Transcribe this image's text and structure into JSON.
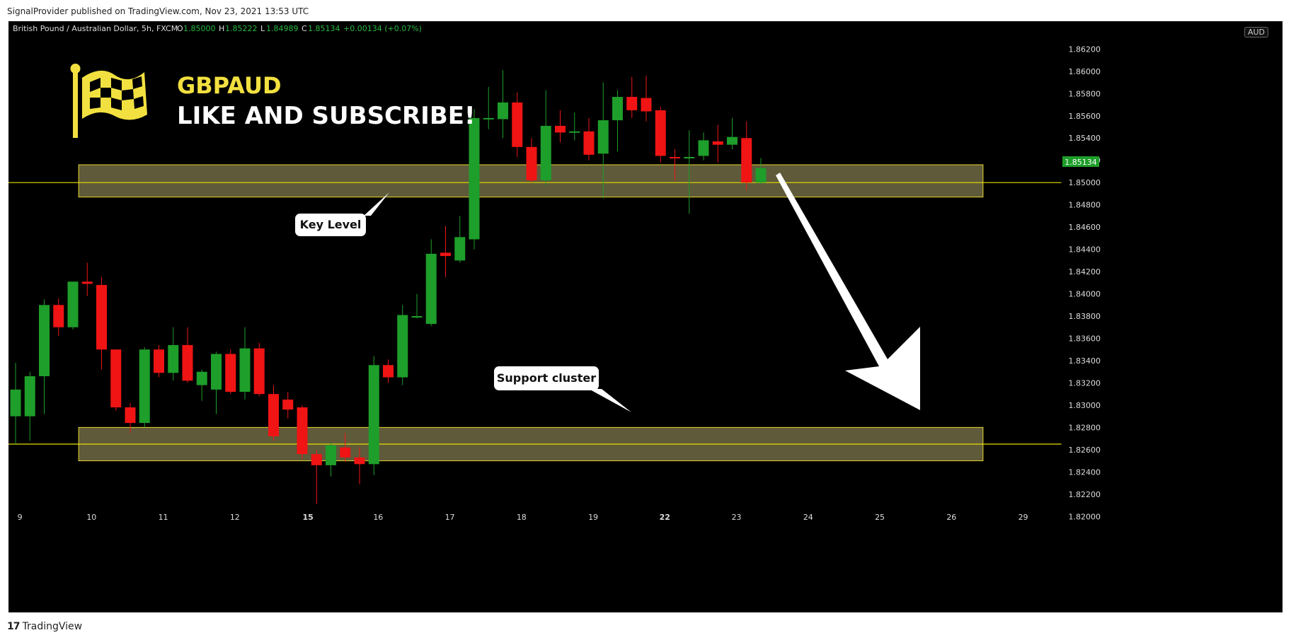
{
  "header": {
    "text": "SignalProvider published on TradingView.com, Nov 23, 2021 13:53 UTC"
  },
  "legend": {
    "symbol": "British Pound / Australian Dollar, 5h, FXCM",
    "o_label": "O",
    "o": "1.85000",
    "h_label": "H",
    "h": "1.85222",
    "l_label": "L",
    "l": "1.84989",
    "c_label": "C",
    "c": "1.85134",
    "change": "+0.00134 (+0.07%)"
  },
  "overlay": {
    "title": "GBPAUD",
    "subtitle": "LIKE AND SUBSCRIBE!",
    "logo_icon": "checkered-flag-icon"
  },
  "annotations": {
    "key_level": "Key Level",
    "support_cluster": "Support cluster"
  },
  "axis": {
    "currency": "AUD",
    "last_price": "1.85134"
  },
  "footer": {
    "brand": "TradingView",
    "brand_icon": "tradingview-logo-icon"
  },
  "colors": {
    "up": "#1e9e2a",
    "down": "#f01414",
    "zone_fill": "#5e5a3a",
    "zone_border": "#e6d52a",
    "level_line": "#e8e000",
    "title": "#f2e040"
  },
  "chart_data": {
    "type": "candlestick",
    "y_ticks": [
      "1.82000",
      "1.82200",
      "1.82400",
      "1.82600",
      "1.82800",
      "1.83000",
      "1.83200",
      "1.83400",
      "1.83600",
      "1.83800",
      "1.84000",
      "1.84200",
      "1.84400",
      "1.84600",
      "1.84800",
      "1.85000",
      "1.85200",
      "1.85400",
      "1.85600",
      "1.85800",
      "1.86000",
      "1.86200"
    ],
    "ylim": [
      1.819,
      1.8645
    ],
    "x_ticks": [
      {
        "label": "9",
        "idx": 0.3,
        "bold": false
      },
      {
        "label": "10",
        "idx": 5.3,
        "bold": false
      },
      {
        "label": "11",
        "idx": 10.3,
        "bold": false
      },
      {
        "label": "12",
        "idx": 15.3,
        "bold": false
      },
      {
        "label": "15",
        "idx": 20.4,
        "bold": true
      },
      {
        "label": "16",
        "idx": 25.3,
        "bold": false
      },
      {
        "label": "17",
        "idx": 30.3,
        "bold": false
      },
      {
        "label": "18",
        "idx": 35.3,
        "bold": false
      },
      {
        "label": "19",
        "idx": 40.3,
        "bold": false
      },
      {
        "label": "22",
        "idx": 45.3,
        "bold": true
      },
      {
        "label": "23",
        "idx": 50.3,
        "bold": false
      },
      {
        "label": "24",
        "idx": 55.3,
        "bold": false
      },
      {
        "label": "25",
        "idx": 60.3,
        "bold": false
      },
      {
        "label": "26",
        "idx": 65.3,
        "bold": false
      },
      {
        "label": "29",
        "idx": 70.3,
        "bold": false
      }
    ],
    "candles": [
      {
        "o": 1.829,
        "h": 1.8338,
        "l": 1.8265,
        "c": 1.8314
      },
      {
        "o": 1.829,
        "h": 1.833,
        "l": 1.8268,
        "c": 1.8326
      },
      {
        "o": 1.8326,
        "h": 1.8395,
        "l": 1.8292,
        "c": 1.839
      },
      {
        "o": 1.839,
        "h": 1.8396,
        "l": 1.8362,
        "c": 1.837
      },
      {
        "o": 1.837,
        "h": 1.8411,
        "l": 1.8368,
        "c": 1.8411
      },
      {
        "o": 1.8411,
        "h": 1.8428,
        "l": 1.8398,
        "c": 1.8409
      },
      {
        "o": 1.8408,
        "h": 1.8415,
        "l": 1.8332,
        "c": 1.835
      },
      {
        "o": 1.835,
        "h": 1.835,
        "l": 1.8295,
        "c": 1.8298
      },
      {
        "o": 1.8298,
        "h": 1.8302,
        "l": 1.8275,
        "c": 1.8284
      },
      {
        "o": 1.8284,
        "h": 1.8352,
        "l": 1.828,
        "c": 1.835
      },
      {
        "o": 1.835,
        "h": 1.8354,
        "l": 1.8325,
        "c": 1.8329
      },
      {
        "o": 1.8329,
        "h": 1.837,
        "l": 1.8322,
        "c": 1.8354
      },
      {
        "o": 1.8354,
        "h": 1.837,
        "l": 1.832,
        "c": 1.8322
      },
      {
        "o": 1.8318,
        "h": 1.8332,
        "l": 1.8304,
        "c": 1.833
      },
      {
        "o": 1.8314,
        "h": 1.8348,
        "l": 1.8292,
        "c": 1.8346
      },
      {
        "o": 1.8346,
        "h": 1.835,
        "l": 1.831,
        "c": 1.8312
      },
      {
        "o": 1.8312,
        "h": 1.837,
        "l": 1.8305,
        "c": 1.8351
      },
      {
        "o": 1.8351,
        "h": 1.8356,
        "l": 1.8308,
        "c": 1.831
      },
      {
        "o": 1.831,
        "h": 1.8318,
        "l": 1.8268,
        "c": 1.8272
      },
      {
        "o": 1.8305,
        "h": 1.8312,
        "l": 1.8288,
        "c": 1.8296
      },
      {
        "o": 1.8298,
        "h": 1.83,
        "l": 1.8252,
        "c": 1.8256
      },
      {
        "o": 1.8256,
        "h": 1.826,
        "l": 1.8211,
        "c": 1.8246
      },
      {
        "o": 1.8246,
        "h": 1.8266,
        "l": 1.8236,
        "c": 1.8264
      },
      {
        "o": 1.8262,
        "h": 1.8275,
        "l": 1.8249,
        "c": 1.8253
      },
      {
        "o": 1.8253,
        "h": 1.8262,
        "l": 1.8229,
        "c": 1.8247
      },
      {
        "o": 1.8247,
        "h": 1.8344,
        "l": 1.8237,
        "c": 1.8336
      },
      {
        "o": 1.8336,
        "h": 1.8341,
        "l": 1.832,
        "c": 1.8325
      },
      {
        "o": 1.8325,
        "h": 1.839,
        "l": 1.8318,
        "c": 1.8381
      },
      {
        "o": 1.838,
        "h": 1.84,
        "l": 1.8378,
        "c": 1.838
      },
      {
        "o": 1.8373,
        "h": 1.8449,
        "l": 1.8371,
        "c": 1.8436
      },
      {
        "o": 1.8437,
        "h": 1.8461,
        "l": 1.8415,
        "c": 1.8434
      },
      {
        "o": 1.843,
        "h": 1.847,
        "l": 1.8428,
        "c": 1.8451
      },
      {
        "o": 1.8449,
        "h": 1.8566,
        "l": 1.844,
        "c": 1.8558
      },
      {
        "o": 1.8558,
        "h": 1.8586,
        "l": 1.8548,
        "c": 1.8558
      },
      {
        "o": 1.8557,
        "h": 1.8601,
        "l": 1.854,
        "c": 1.8572
      },
      {
        "o": 1.8572,
        "h": 1.8581,
        "l": 1.8523,
        "c": 1.8532
      },
      {
        "o": 1.8532,
        "h": 1.854,
        "l": 1.85,
        "c": 1.8502
      },
      {
        "o": 1.8502,
        "h": 1.8583,
        "l": 1.8498,
        "c": 1.8551
      },
      {
        "o": 1.8551,
        "h": 1.8565,
        "l": 1.8536,
        "c": 1.8545
      },
      {
        "o": 1.8546,
        "h": 1.8563,
        "l": 1.8538,
        "c": 1.8546
      },
      {
        "o": 1.8546,
        "h": 1.8558,
        "l": 1.852,
        "c": 1.8525
      },
      {
        "o": 1.8526,
        "h": 1.859,
        "l": 1.8486,
        "c": 1.8556
      },
      {
        "o": 1.8556,
        "h": 1.8583,
        "l": 1.8528,
        "c": 1.8577
      },
      {
        "o": 1.8577,
        "h": 1.8595,
        "l": 1.8558,
        "c": 1.8565
      },
      {
        "o": 1.8576,
        "h": 1.8596,
        "l": 1.8555,
        "c": 1.8564
      },
      {
        "o": 1.8565,
        "h": 1.8568,
        "l": 1.8518,
        "c": 1.8524
      },
      {
        "o": 1.8523,
        "h": 1.853,
        "l": 1.8502,
        "c": 1.8522
      },
      {
        "o": 1.8522,
        "h": 1.8547,
        "l": 1.8472,
        "c": 1.8523
      },
      {
        "o": 1.8524,
        "h": 1.8545,
        "l": 1.852,
        "c": 1.8538
      },
      {
        "o": 1.8537,
        "h": 1.8552,
        "l": 1.8518,
        "c": 1.8534
      },
      {
        "o": 1.8534,
        "h": 1.8558,
        "l": 1.853,
        "c": 1.8541
      },
      {
        "o": 1.854,
        "h": 1.8555,
        "l": 1.8493,
        "c": 1.85
      },
      {
        "o": 1.85,
        "h": 1.8522,
        "l": 1.8499,
        "c": 1.8513
      }
    ],
    "zones": [
      {
        "name": "key-level",
        "top": 1.8516,
        "bottom": 1.8487,
        "start_idx": 4.4,
        "end_idx": 67.5
      },
      {
        "name": "support-cluster",
        "top": 1.828,
        "bottom": 1.825,
        "start_idx": 4.4,
        "end_idx": 67.5
      }
    ],
    "levels": [
      1.85,
      1.8265
    ]
  }
}
